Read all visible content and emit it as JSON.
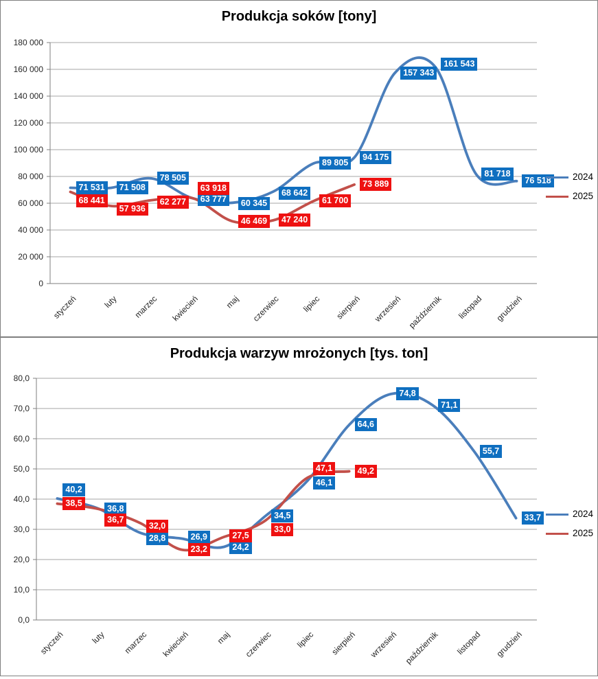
{
  "chart_data": [
    {
      "type": "line",
      "title": "Produkcja soków [tony]",
      "categories": [
        "styczeń",
        "luty",
        "marzec",
        "kwiecień",
        "maj",
        "czerwiec",
        "lipiec",
        "sierpień",
        "wrzesień",
        "październik",
        "listopad",
        "grudzień"
      ],
      "ylim": [
        0,
        180000
      ],
      "ytick_step": 20000,
      "ytick_labels": [
        "0",
        "20 000",
        "40 000",
        "60 000",
        "80 000",
        "100 000",
        "120 000",
        "140 000",
        "160 000",
        "180 000"
      ],
      "grid": true,
      "smooth": true,
      "legend_position": "right",
      "series": [
        {
          "name": "2024",
          "line_color": "#4a7ebb",
          "label_bg": "#0f6fc0",
          "values": [
            71531,
            71508,
            78505,
            63777,
            60345,
            68642,
            89805,
            94175,
            157343,
            161543,
            81718,
            76518
          ],
          "labels": [
            "71 531",
            "71 508",
            "78 505",
            "63 777",
            "60 345",
            "68 642",
            "89 805",
            "94 175",
            "157 343",
            "161 543",
            "81 718",
            "76 518"
          ]
        },
        {
          "name": "2025",
          "line_color": "#c2504a",
          "label_bg": "#ee1111",
          "values": [
            68441,
            57936,
            62277,
            63918,
            46469,
            47240,
            61700,
            73889
          ],
          "labels": [
            "68 441",
            "57 936",
            "62 277",
            "63 918",
            "46 469",
            "47 240",
            "61 700",
            "73 889"
          ]
        }
      ]
    },
    {
      "type": "line",
      "title": "Produkcja warzyw mrożonych [tys. ton]",
      "categories": [
        "styczeń",
        "luty",
        "marzec",
        "kwiecień",
        "maj",
        "czerwiec",
        "lipiec",
        "sierpień",
        "wrzesień",
        "październik",
        "listopad",
        "grudzień"
      ],
      "ylim": [
        0,
        80
      ],
      "ytick_step": 10,
      "ytick_labels": [
        "0,0",
        "10,0",
        "20,0",
        "30,0",
        "40,0",
        "50,0",
        "60,0",
        "70,0",
        "80,0"
      ],
      "grid": true,
      "smooth": true,
      "legend_position": "right",
      "series": [
        {
          "name": "2024",
          "line_color": "#4a7ebb",
          "label_bg": "#0f6fc0",
          "values": [
            40.2,
            36.8,
            28.8,
            26.9,
            24.2,
            34.5,
            46.1,
            64.6,
            74.8,
            71.1,
            55.7,
            33.7
          ],
          "labels": [
            "40,2",
            "36,8",
            "28,8",
            "26,9",
            "24,2",
            "34,5",
            "46,1",
            "64,6",
            "74,8",
            "71,1",
            "55,7",
            "33,7"
          ]
        },
        {
          "name": "2025",
          "line_color": "#c2504a",
          "label_bg": "#ee1111",
          "values": [
            38.5,
            36.7,
            32.0,
            23.2,
            27.5,
            33.0,
            47.1,
            49.2
          ],
          "labels": [
            "38,5",
            "36,7",
            "32,0",
            "23,2",
            "27,5",
            "33,0",
            "47,1",
            "49,2"
          ]
        }
      ]
    }
  ],
  "colors": {
    "gridline": "#a6a6a6",
    "axis": "#7f7f7f",
    "tick_text": "#262626"
  }
}
